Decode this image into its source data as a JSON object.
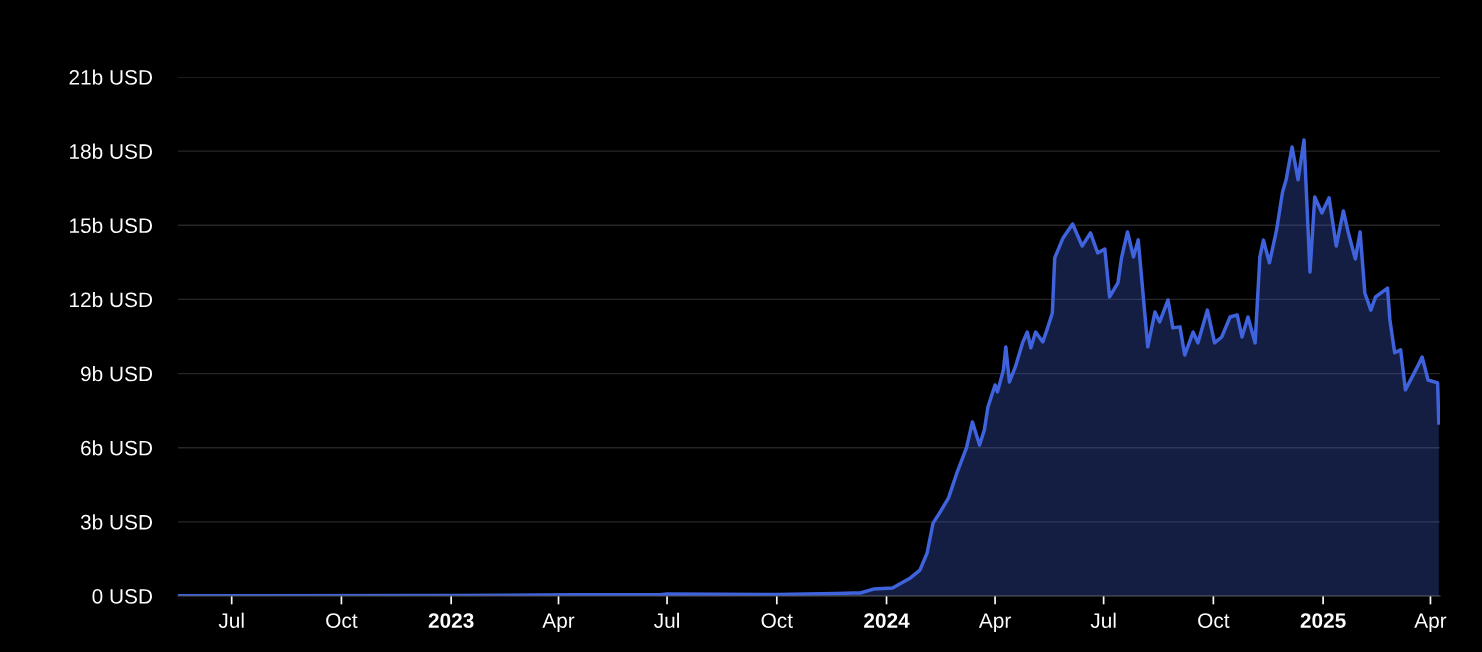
{
  "chart_data": {
    "type": "area",
    "x": [
      "2022-05-17",
      "2023-01-01",
      "2023-04-15",
      "2023-06-25",
      "2023-07-01",
      "2023-10-01",
      "2023-11-20",
      "2023-12-05",
      "2023-12-10",
      "2023-12-21",
      "2024-01-06",
      "2024-01-21",
      "2024-01-29",
      "2024-02-04",
      "2024-02-09",
      "2024-02-15",
      "2024-02-22",
      "2024-02-29",
      "2024-03-08",
      "2024-03-13",
      "2024-03-19",
      "2024-03-23",
      "2024-03-26",
      "2024-04-01",
      "2024-04-03",
      "2024-04-08",
      "2024-04-10",
      "2024-04-13",
      "2024-04-18",
      "2024-04-24",
      "2024-04-28",
      "2024-05-01",
      "2024-05-05",
      "2024-05-11",
      "2024-05-15",
      "2024-05-19",
      "2024-05-21",
      "2024-05-28",
      "2024-06-05",
      "2024-06-13",
      "2024-06-20",
      "2024-06-26",
      "2024-07-02",
      "2024-07-06",
      "2024-07-13",
      "2024-07-16",
      "2024-07-21",
      "2024-07-26",
      "2024-07-30",
      "2024-08-07",
      "2024-08-13",
      "2024-08-17",
      "2024-08-24",
      "2024-08-28",
      "2024-09-03",
      "2024-09-07",
      "2024-09-14",
      "2024-09-18",
      "2024-09-26",
      "2024-10-02",
      "2024-10-08",
      "2024-10-15",
      "2024-10-21",
      "2024-10-25",
      "2024-10-30",
      "2024-11-05",
      "2024-11-09",
      "2024-11-12",
      "2024-11-17",
      "2024-11-23",
      "2024-11-28",
      "2024-12-01",
      "2024-12-06",
      "2024-12-11",
      "2024-12-16",
      "2024-12-21",
      "2024-12-25",
      "2024-12-31",
      "2025-01-06",
      "2025-01-12",
      "2025-01-18",
      "2025-01-22",
      "2025-01-28",
      "2025-02-01",
      "2025-02-05",
      "2025-02-10",
      "2025-02-14",
      "2025-02-24",
      "2025-02-26",
      "2025-03-02",
      "2025-03-07",
      "2025-03-11",
      "2025-03-21",
      "2025-03-25",
      "2025-03-30",
      "2025-04-07",
      "2025-04-08"
    ],
    "series": [
      {
        "color": "#3f63dc",
        "values": [
          0.01,
          0.02,
          0.05,
          0.05,
          0.08,
          0.06,
          0.1,
          0.12,
          0.12,
          0.28,
          0.32,
          0.73,
          1.05,
          1.74,
          2.95,
          3.4,
          3.97,
          4.98,
          5.99,
          7.04,
          6.11,
          6.72,
          7.65,
          8.54,
          8.26,
          9.15,
          10.08,
          8.66,
          9.27,
          10.24,
          10.68,
          10.04,
          10.68,
          10.28,
          10.84,
          11.45,
          13.68,
          14.49,
          15.05,
          14.16,
          14.69,
          13.88,
          14.04,
          12.1,
          12.67,
          13.68,
          14.73,
          13.72,
          14.41,
          10.08,
          11.49,
          11.09,
          11.98,
          10.85,
          10.89,
          9.75,
          10.68,
          10.24,
          11.57,
          10.24,
          10.48,
          11.29,
          11.37,
          10.48,
          11.29,
          10.24,
          13.72,
          14.4,
          13.48,
          14.81,
          16.35,
          16.84,
          18.17,
          16.84,
          18.45,
          13.11,
          16.15,
          15.5,
          16.11,
          14.16,
          15.58,
          14.73,
          13.64,
          14.73,
          12.26,
          11.57,
          12.1,
          12.46,
          11.17,
          9.84,
          9.96,
          8.34,
          9.27,
          9.67,
          8.74,
          8.62,
          7.0
        ]
      }
    ],
    "xlim": [
      "2022-05-17",
      "2025-04-09"
    ],
    "xticks": [
      {
        "value": "2022-07-01",
        "label": "Jul"
      },
      {
        "value": "2022-10-01",
        "label": "Oct"
      },
      {
        "value": "2023-01-01",
        "label": "2023"
      },
      {
        "value": "2023-04-01",
        "label": "Apr"
      },
      {
        "value": "2023-07-01",
        "label": "Jul"
      },
      {
        "value": "2023-10-01",
        "label": "Oct"
      },
      {
        "value": "2024-01-01",
        "label": "2024"
      },
      {
        "value": "2024-04-01",
        "label": "Apr"
      },
      {
        "value": "2024-07-01",
        "label": "Jul"
      },
      {
        "value": "2024-10-01",
        "label": "Oct"
      },
      {
        "value": "2025-01-01",
        "label": "2025"
      },
      {
        "value": "2025-04-01",
        "label": "Apr"
      }
    ],
    "ylim": [
      0,
      21
    ],
    "yticks": [
      {
        "value": 0,
        "label": "0 USD"
      },
      {
        "value": 3,
        "label": "3b USD"
      },
      {
        "value": 6,
        "label": "6b USD"
      },
      {
        "value": 9,
        "label": "9b USD"
      },
      {
        "value": 12,
        "label": "12b USD"
      },
      {
        "value": 15,
        "label": "15b USD"
      },
      {
        "value": 18,
        "label": "18b USD"
      },
      {
        "value": 21,
        "label": "21b USD"
      }
    ],
    "grid": "y",
    "legend": false
  }
}
